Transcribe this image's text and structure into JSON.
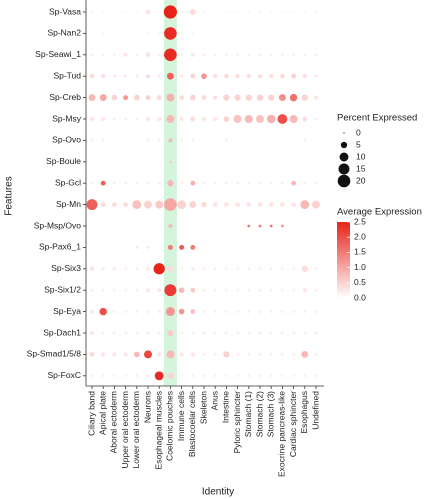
{
  "chart_data": {
    "type": "dot",
    "x_label": "Identity",
    "y_label": "Features",
    "categories": [
      "Ciliary band",
      "Apical plate",
      "Aboral ectoderm",
      "Upper oral ectoderm",
      "Lower oral ectoderm",
      "Neurons",
      "Esophageal muscles",
      "Coelomic pouches",
      "Immune cells",
      "Blastocoelar cells",
      "Skeleton",
      "Anus",
      "Intestine",
      "Pyloric sphincter",
      "Stomach (1)",
      "Stomach (2)",
      "Stomach (3)",
      "Exocrine pancreas-like",
      "Cardiac sphincter",
      "Esophagus",
      "Undefined"
    ],
    "highlight": "Coelomic pouches",
    "highlight_color": "#d4f4dc",
    "series": [
      {
        "name": "Sp-Vasa",
        "pct": [
          1,
          1,
          0,
          1,
          1,
          3,
          1,
          22,
          1,
          4,
          1,
          0,
          1,
          1,
          1,
          1,
          1,
          1,
          1,
          1,
          1
        ],
        "avg": [
          0.1,
          0.1,
          0,
          0.1,
          0.1,
          0.3,
          0.1,
          2.5,
          0.1,
          0.4,
          0.1,
          0,
          0.1,
          0.1,
          0.1,
          0.1,
          0.1,
          0.1,
          0.1,
          0.1,
          0.1
        ]
      },
      {
        "name": "Sp-Nan2",
        "pct": [
          0,
          1,
          0,
          0,
          0,
          1,
          1,
          20,
          1,
          1,
          0,
          0,
          0,
          0,
          0,
          0,
          0,
          0,
          0,
          0,
          0
        ],
        "avg": [
          0,
          0.1,
          0,
          0,
          0,
          0.1,
          0.1,
          2.4,
          0.1,
          0.1,
          0,
          0,
          0,
          0,
          0,
          0,
          0,
          0,
          0,
          0,
          0
        ]
      },
      {
        "name": "Sp-Seawi_1",
        "pct": [
          1,
          1,
          1,
          2,
          1,
          3,
          1,
          20,
          1,
          2,
          1,
          1,
          1,
          1,
          1,
          1,
          1,
          1,
          1,
          1,
          1
        ],
        "avg": [
          0.2,
          0.2,
          0.2,
          0.3,
          0.2,
          0.3,
          0.2,
          2.4,
          0.2,
          0.3,
          0.2,
          0.2,
          0.2,
          0.2,
          0.2,
          0.2,
          0.2,
          0.2,
          0.2,
          0.2,
          0.2
        ]
      },
      {
        "name": "Sp-Tud",
        "pct": [
          3,
          2,
          1,
          1,
          1,
          2,
          1,
          6,
          1,
          3,
          4,
          2,
          3,
          2,
          2,
          2,
          2,
          3,
          3,
          2,
          1
        ],
        "avg": [
          0.4,
          0.4,
          0.3,
          0.3,
          0.3,
          0.4,
          0.3,
          1.8,
          0.3,
          0.5,
          1.2,
          0.4,
          0.4,
          0.4,
          0.4,
          0.4,
          0.4,
          0.4,
          0.5,
          0.4,
          0.3
        ]
      },
      {
        "name": "Sp-Creb",
        "pct": [
          6,
          6,
          4,
          3,
          4,
          3,
          3,
          8,
          3,
          4,
          3,
          2,
          5,
          5,
          5,
          5,
          5,
          6,
          7,
          5,
          2
        ],
        "avg": [
          0.8,
          1.0,
          0.5,
          1.2,
          0.5,
          0.5,
          0.4,
          0.9,
          0.4,
          0.5,
          0.4,
          0.4,
          0.5,
          0.5,
          0.5,
          0.5,
          0.5,
          1.3,
          1.6,
          0.5,
          0.3
        ]
      },
      {
        "name": "Sp-Msy",
        "pct": [
          2,
          2,
          1,
          1,
          1,
          2,
          2,
          8,
          2,
          3,
          2,
          2,
          4,
          8,
          8,
          8,
          9,
          12,
          8,
          3,
          1
        ],
        "avg": [
          0.3,
          0.3,
          0.2,
          0.2,
          0.2,
          0.3,
          0.3,
          0.8,
          0.3,
          0.4,
          0.3,
          0.3,
          0.5,
          0.7,
          0.8,
          0.7,
          0.9,
          2.0,
          0.8,
          0.4,
          0.2
        ]
      },
      {
        "name": "Sp-Ovo",
        "pct": [
          1,
          1,
          0,
          0,
          0,
          1,
          1,
          2,
          1,
          1,
          0,
          0,
          1,
          0,
          0,
          0,
          0,
          0,
          0,
          1,
          0
        ],
        "avg": [
          0.2,
          0.2,
          0,
          0,
          0,
          0.2,
          0.2,
          0.8,
          0.2,
          0.2,
          0,
          0,
          0.2,
          0,
          0,
          0,
          0,
          0,
          0,
          0.2,
          0
        ]
      },
      {
        "name": "Sp-Boule",
        "pct": [
          0,
          0,
          0,
          0,
          0,
          0,
          0,
          1,
          0,
          0,
          0,
          0,
          0,
          0,
          0,
          0,
          0,
          0,
          0,
          0,
          0
        ],
        "avg": [
          0,
          0,
          0,
          0,
          0,
          0,
          0,
          0.6,
          0,
          0,
          0,
          0,
          0,
          0,
          0,
          0,
          0,
          0,
          0,
          0,
          0
        ]
      },
      {
        "name": "Sp-Gcl",
        "pct": [
          1,
          3,
          1,
          1,
          1,
          1,
          1,
          5,
          1,
          3,
          1,
          1,
          1,
          1,
          1,
          1,
          1,
          1,
          3,
          1,
          1
        ],
        "avg": [
          0.2,
          1.8,
          0.2,
          0.2,
          0.2,
          0.2,
          0.2,
          0.8,
          0.2,
          0.9,
          0.2,
          0.2,
          0.2,
          0.2,
          0.2,
          0.2,
          0.2,
          0.2,
          0.8,
          0.2,
          0.2
        ]
      },
      {
        "name": "Sp-Mn",
        "pct": [
          15,
          3,
          3,
          3,
          10,
          8,
          8,
          20,
          10,
          6,
          4,
          3,
          3,
          3,
          3,
          3,
          3,
          3,
          3,
          10,
          8
        ],
        "avg": [
          1.8,
          0.4,
          0.4,
          0.4,
          0.7,
          0.5,
          0.6,
          1.0,
          0.5,
          0.5,
          0.4,
          0.3,
          0.3,
          0.3,
          0.3,
          0.3,
          0.3,
          0.3,
          0.3,
          0.8,
          0.5
        ]
      },
      {
        "name": "Sp-Msp/Ovo",
        "pct": [
          0,
          0,
          0,
          0,
          0,
          0,
          0,
          2,
          0,
          0,
          0,
          0,
          0,
          0,
          1,
          1,
          1,
          1,
          0,
          0,
          0
        ],
        "avg": [
          0,
          0,
          0,
          0,
          0,
          0,
          0,
          0.8,
          0,
          0,
          0,
          0,
          0,
          0,
          1.5,
          1.5,
          1.5,
          1.2,
          0,
          0,
          0
        ]
      },
      {
        "name": "Sp-Pax6_1",
        "pct": [
          0,
          0,
          0,
          0,
          1,
          1,
          0,
          3,
          3,
          3,
          0,
          0,
          0,
          0,
          0,
          0,
          0,
          0,
          0,
          0,
          0
        ],
        "avg": [
          0,
          0,
          0,
          0,
          0.3,
          0.3,
          0,
          1.5,
          1.9,
          1.5,
          0,
          0,
          0,
          0,
          0,
          0,
          0,
          0,
          0,
          0,
          0
        ]
      },
      {
        "name": "Sp-Six3",
        "pct": [
          3,
          2,
          2,
          1,
          1,
          2,
          16,
          4,
          1,
          2,
          1,
          1,
          1,
          1,
          1,
          1,
          1,
          1,
          1,
          5,
          1
        ],
        "avg": [
          0.3,
          0.2,
          0.2,
          0.2,
          0.2,
          0.2,
          2.5,
          0.4,
          0.2,
          0.2,
          0.2,
          0.2,
          0.2,
          0.2,
          0.2,
          0.2,
          0.2,
          0.2,
          0.2,
          0.4,
          0.2
        ]
      },
      {
        "name": "Sp-Six1/2",
        "pct": [
          1,
          1,
          1,
          1,
          1,
          2,
          2,
          18,
          4,
          3,
          1,
          1,
          1,
          1,
          1,
          1,
          1,
          1,
          1,
          2,
          1
        ],
        "avg": [
          0.2,
          0.2,
          0.2,
          0.2,
          0.2,
          0.3,
          0.3,
          2.2,
          0.8,
          0.6,
          0.2,
          0.2,
          0.2,
          0.2,
          0.2,
          0.2,
          0.2,
          0.2,
          0.2,
          0.3,
          0.2
        ]
      },
      {
        "name": "Sp-Eya",
        "pct": [
          2,
          7,
          1,
          1,
          1,
          1,
          1,
          10,
          4,
          3,
          1,
          1,
          1,
          1,
          1,
          1,
          1,
          1,
          1,
          1,
          1
        ],
        "avg": [
          0.3,
          2.0,
          0.2,
          0.2,
          0.2,
          0.2,
          0.2,
          1.2,
          1.2,
          0.7,
          0.2,
          0.2,
          0.2,
          0.2,
          0.2,
          0.2,
          0.2,
          0.2,
          0.2,
          0.2,
          0.2
        ]
      },
      {
        "name": "Sp-Dach1",
        "pct": [
          2,
          1,
          1,
          1,
          1,
          1,
          1,
          5,
          1,
          1,
          1,
          1,
          1,
          1,
          1,
          1,
          1,
          1,
          1,
          1,
          1
        ],
        "avg": [
          0.3,
          0.2,
          0.2,
          0.2,
          0.2,
          0.2,
          0.2,
          0.6,
          0.2,
          0.2,
          0.2,
          0.2,
          0.2,
          0.2,
          0.2,
          0.2,
          0.2,
          0.2,
          0.2,
          0.2,
          0.2
        ]
      },
      {
        "name": "Sp-Smad1/5/8",
        "pct": [
          3,
          2,
          2,
          2,
          4,
          8,
          2,
          8,
          2,
          2,
          1,
          1,
          5,
          1,
          1,
          1,
          1,
          1,
          1,
          6,
          1
        ],
        "avg": [
          0.4,
          0.3,
          0.3,
          0.3,
          0.8,
          2.1,
          0.3,
          0.8,
          0.3,
          0.3,
          0.2,
          0.2,
          0.5,
          0.2,
          0.2,
          0.2,
          0.2,
          0.2,
          0.2,
          0.8,
          0.2
        ]
      },
      {
        "name": "Sp-FoxC",
        "pct": [
          1,
          1,
          1,
          1,
          1,
          1,
          10,
          5,
          1,
          1,
          1,
          1,
          1,
          1,
          1,
          1,
          1,
          1,
          1,
          1,
          1
        ],
        "avg": [
          0.2,
          0.2,
          0.2,
          0.2,
          0.2,
          0.2,
          2.4,
          0.5,
          0.2,
          0.2,
          0.2,
          0.2,
          0.2,
          0.2,
          0.2,
          0.2,
          0.2,
          0.2,
          0.2,
          0.2,
          0.2
        ]
      }
    ],
    "size_legend": {
      "title": "Percent Expressed",
      "values": [
        0,
        5,
        10,
        15,
        20
      ]
    },
    "color_legend": {
      "title": "Average Expression",
      "lim": [
        0,
        2.5
      ],
      "colors": [
        "#ffffff",
        "#e8231a"
      ],
      "ticks": [
        {
          "value": 0,
          "label": "0.0"
        },
        {
          "value": 0.5,
          "label": "0.5"
        },
        {
          "value": 1,
          "label": "1.0"
        },
        {
          "value": 1.5,
          "label": "1.5"
        },
        {
          "value": 2,
          "label": "2.0"
        },
        2.5
      ]
    }
  }
}
